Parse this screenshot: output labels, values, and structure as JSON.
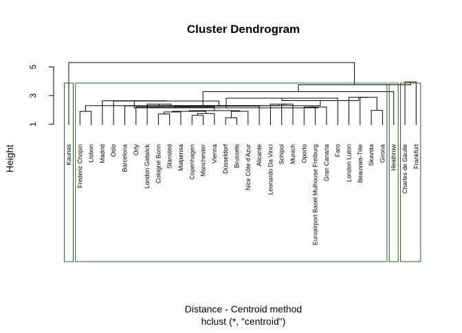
{
  "chart_data": {
    "type": "dendrogram",
    "title": "Cluster Dendrogram",
    "xlabel": "Distance - Centroid method",
    "sub": "hclust (*, \"centroid\")",
    "ylabel": "Height",
    "yticks": [
      1,
      3,
      5
    ],
    "ylim": [
      1,
      5.4
    ],
    "leaves": [
      "Kaunas",
      "Frederic Chopin",
      "Lisbon",
      "Madrid",
      "Oslo",
      "Barcelona",
      "Orly",
      "London Gatwick",
      "Cologne Bonn",
      "Stansted",
      "Malpensa",
      "Copenhagen",
      "Manchester",
      "Vienna",
      "Düsseldorf",
      "Brussels",
      "Nice Côte d'Azur",
      "Alicante",
      "Leonardo Da Vinci",
      "Schipol",
      "Munich",
      "Oporto",
      "Euroairport Basel Mulhouse Freiburg",
      "Gran Canaria",
      "Faro",
      "London Luton",
      "Beauvais-Tille",
      "Skavsta",
      "Girona",
      "Heathrow",
      "Charles de Gaulle",
      "Frankfurt"
    ],
    "merges": [
      {
        "left": {
          "leaf": 14
        },
        "right": {
          "leaf": 15
        },
        "height": 1.45
      },
      {
        "left": {
          "leaf": 11
        },
        "right": {
          "leaf": 12
        },
        "height": 1.62
      },
      {
        "left": {
          "leaf": 8
        },
        "right": {
          "leaf": 9
        },
        "height": 1.72
      },
      {
        "left": {
          "node": 1
        },
        "right": {
          "leaf": 13
        },
        "height": 1.75
      },
      {
        "left": {
          "node": 2
        },
        "right": {
          "leaf": 10
        },
        "height": 1.86
      },
      {
        "left": {
          "leaf": 1
        },
        "right": {
          "leaf": 2
        },
        "height": 1.9
      },
      {
        "left": {
          "node": 0
        },
        "right": {
          "leaf": 16
        },
        "height": 1.9
      },
      {
        "left": {
          "node": 4
        },
        "right": {
          "node": 3
        },
        "height": 1.9
      },
      {
        "left": {
          "leaf": 27
        },
        "right": {
          "leaf": 28
        },
        "height": 1.97
      },
      {
        "left": {
          "node": 7
        },
        "right": {
          "node": 6
        },
        "height": 1.95
      },
      {
        "left": {
          "leaf": 21
        },
        "right": {
          "leaf": 22
        },
        "height": 2.2
      },
      {
        "left": {
          "node": 10
        },
        "right": {
          "leaf": 23
        },
        "height": 2.2
      },
      {
        "left": {
          "leaf": 6
        },
        "right": {
          "node": 9
        },
        "height": 2.2
      },
      {
        "left": {
          "node": 12
        },
        "right": {
          "leaf": 17
        },
        "height": 2.26
      },
      {
        "left": {
          "leaf": 5
        },
        "right": {
          "node": 13
        },
        "height": 2.28
      },
      {
        "left": {
          "leaf": 19
        },
        "right": {
          "leaf": 20
        },
        "height": 2.4
      },
      {
        "left": {
          "leaf": 18
        },
        "right": {
          "node": 15
        },
        "height": 2.4
      },
      {
        "left": {
          "node": 14
        },
        "right": {
          "leaf": 7
        },
        "height": 2.4
      },
      {
        "left": {
          "node": 17
        },
        "right": {
          "node": 16
        },
        "height": 2.3
      },
      {
        "left": {
          "leaf": 4
        },
        "right": {
          "node": 18
        },
        "height": 2.62
      },
      {
        "left": {
          "leaf": 3
        },
        "right": {
          "node": 19
        },
        "height": 2.64
      },
      {
        "left": {
          "node": 20
        },
        "right": {
          "node": 11
        },
        "height": 2.15
      },
      {
        "left": {
          "leaf": 26
        },
        "right": {
          "node": 8
        },
        "height": 2.88
      },
      {
        "left": {
          "node": 21
        },
        "right": {
          "leaf": 24
        },
        "height": 2.82
      },
      {
        "left": {
          "leaf": 25
        },
        "right": {
          "node": 22
        },
        "height": 2.88
      },
      {
        "left": {
          "node": 23
        },
        "right": {
          "node": 24
        },
        "height": 2.65
      },
      {
        "left": {
          "node": 5
        },
        "right": {
          "node": 25
        },
        "height": 2.3
      },
      {
        "left": {
          "leaf": 30
        },
        "right": {
          "leaf": 31
        },
        "height": 3.95
      },
      {
        "left": {
          "node": 26
        },
        "right": {
          "leaf": 29
        },
        "height": 3.27
      },
      {
        "left": {
          "node": 28
        },
        "right": {
          "node": 27
        },
        "height": 3.75
      },
      {
        "left": {
          "leaf": 0
        },
        "right": {
          "node": 29
        },
        "height": 5.3
      }
    ],
    "cluster_groups": [
      [
        0,
        0
      ],
      [
        1,
        28
      ],
      [
        29,
        29
      ],
      [
        30,
        31
      ]
    ],
    "cluster_border_color": "#1f5f1f"
  }
}
